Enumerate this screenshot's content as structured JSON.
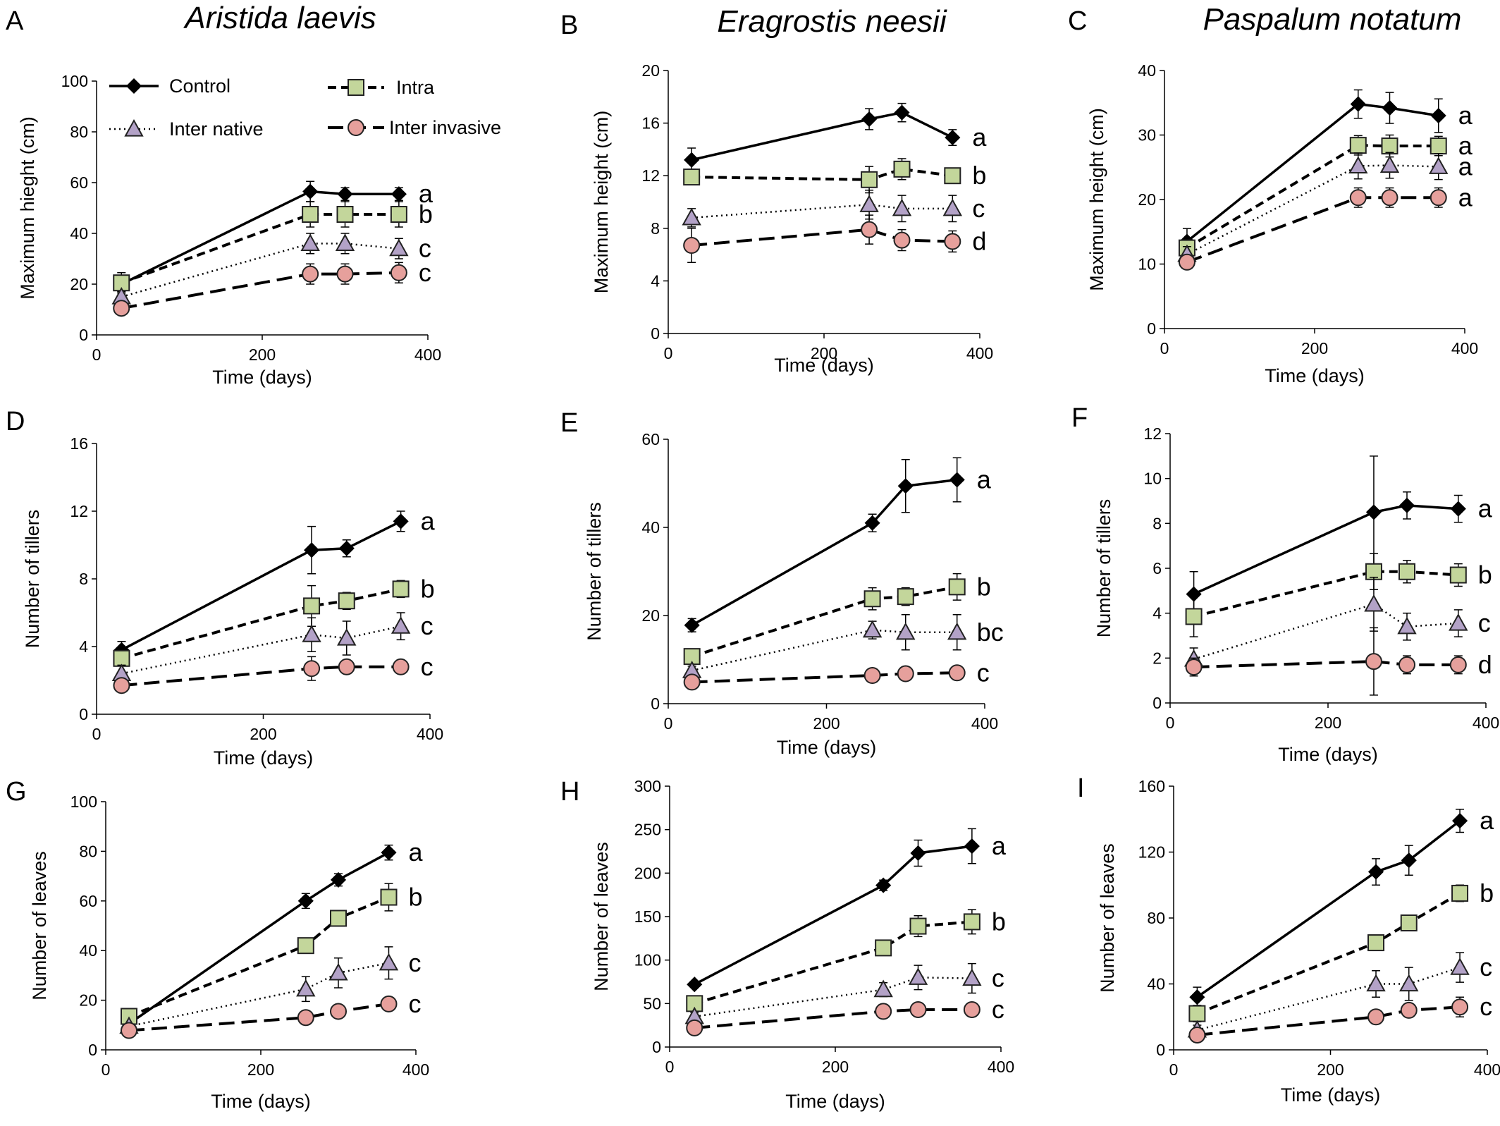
{
  "figure": {
    "species": [
      "Aristida laevis",
      "Eragrostis neesii",
      "Paspalum notatum"
    ],
    "legend": [
      {
        "name": "Control",
        "style": "control"
      },
      {
        "name": "Intra",
        "style": "intra"
      },
      {
        "name": "Inter native",
        "style": "native"
      },
      {
        "name": "Inter invasive",
        "style": "invasive"
      }
    ],
    "colors": {
      "control": "#000000",
      "intra": "#c3d69b",
      "native": "#b3a2c7",
      "invasive": "#e6a09c"
    }
  },
  "chart_data": [
    {
      "panel": "A",
      "type": "line",
      "xlabel": "Time (days)",
      "ylabel": "Maximum hieght (cm)",
      "xlim": [
        0,
        400
      ],
      "ylim": [
        0,
        100
      ],
      "xticks": [
        0,
        200,
        400
      ],
      "yticks": [
        0,
        20,
        40,
        60,
        80,
        100
      ],
      "x": [
        30,
        258,
        300,
        365
      ],
      "series": [
        {
          "name": "Control",
          "values": [
            20,
            56.5,
            55.5,
            55.5
          ],
          "err": [
            2,
            4,
            2.5,
            2.5
          ],
          "letter": "a"
        },
        {
          "name": "Intra",
          "values": [
            20.5,
            47.5,
            47.5,
            47.5
          ],
          "err": [
            4,
            5,
            5,
            5
          ],
          "letter": "b"
        },
        {
          "name": "Inter native",
          "values": [
            15,
            36,
            36,
            34
          ],
          "err": [
            2,
            4,
            4,
            4
          ],
          "letter": "c"
        },
        {
          "name": "Inter invasive",
          "values": [
            10.5,
            24,
            24,
            24.5
          ],
          "err": [
            1,
            4,
            4,
            4
          ],
          "letter": "c"
        }
      ]
    },
    {
      "panel": "B",
      "type": "line",
      "xlabel": "Time (days)",
      "ylabel": "Maximum height (cm)",
      "xlim": [
        0,
        400
      ],
      "ylim": [
        0,
        20
      ],
      "xticks": [
        0,
        200,
        400
      ],
      "yticks": [
        0,
        4,
        8,
        12,
        16,
        20
      ],
      "x": [
        30,
        258,
        300,
        365
      ],
      "series": [
        {
          "name": "Control",
          "values": [
            13.2,
            16.3,
            16.8,
            14.9
          ],
          "err": [
            0.9,
            0.8,
            0.7,
            0.6
          ],
          "letter": "a"
        },
        {
          "name": "Intra",
          "values": [
            11.9,
            11.7,
            12.5,
            12
          ],
          "err": [
            0.6,
            1,
            0.8,
            0.5
          ],
          "letter": "b"
        },
        {
          "name": "Inter native",
          "values": [
            8.8,
            9.8,
            9.5,
            9.5
          ],
          "err": [
            0.7,
            1.1,
            1,
            1
          ],
          "letter": "c"
        },
        {
          "name": "Inter invasive",
          "values": [
            6.7,
            7.9,
            7.1,
            7
          ],
          "err": [
            1.3,
            1.1,
            0.8,
            0.8
          ],
          "letter": "d"
        }
      ]
    },
    {
      "panel": "C",
      "type": "line",
      "xlabel": "Time (days)",
      "ylabel": "Maximum height (cm)",
      "xlim": [
        0,
        400
      ],
      "ylim": [
        0,
        40
      ],
      "xticks": [
        0,
        200,
        400
      ],
      "yticks": [
        0,
        10,
        20,
        30,
        40
      ],
      "x": [
        30,
        258,
        300,
        365
      ],
      "series": [
        {
          "name": "Control",
          "values": [
            13.5,
            34.8,
            34.2,
            33
          ],
          "err": [
            2,
            2.2,
            2.4,
            2.6
          ],
          "letter": "a"
        },
        {
          "name": "Intra",
          "values": [
            12.5,
            28.4,
            28.3,
            28.3
          ],
          "err": [
            1.5,
            1.5,
            1.7,
            1.5
          ],
          "letter": "a"
        },
        {
          "name": "Inter native",
          "values": [
            11.5,
            25.2,
            25.3,
            25.1
          ],
          "err": [
            1.2,
            2,
            2,
            2
          ],
          "letter": "a"
        },
        {
          "name": "Inter invasive",
          "values": [
            10.3,
            20.3,
            20.3,
            20.3
          ],
          "err": [
            0.8,
            1.5,
            1.5,
            1.5
          ],
          "letter": "a"
        }
      ]
    },
    {
      "panel": "D",
      "type": "line",
      "xlabel": "Time (days)",
      "ylabel": "Number of tillers",
      "xlim": [
        0,
        400
      ],
      "ylim": [
        0,
        16
      ],
      "xticks": [
        0,
        200,
        400
      ],
      "yticks": [
        0,
        4,
        8,
        12,
        16
      ],
      "x": [
        30,
        258,
        300,
        365
      ],
      "series": [
        {
          "name": "Control",
          "values": [
            3.8,
            9.7,
            9.8,
            11.4
          ],
          "err": [
            0.5,
            1.4,
            0.5,
            0.6
          ],
          "letter": "a"
        },
        {
          "name": "Intra",
          "values": [
            3.3,
            6.4,
            6.7,
            7.4
          ],
          "err": [
            0.4,
            1.2,
            0.5,
            0.5
          ],
          "letter": "b"
        },
        {
          "name": "Inter native",
          "values": [
            2.4,
            4.7,
            4.5,
            5.2
          ],
          "err": [
            0.5,
            1,
            1,
            0.8
          ],
          "letter": "c"
        },
        {
          "name": "Inter invasive",
          "values": [
            1.7,
            2.7,
            2.8,
            2.8
          ],
          "err": [
            0.2,
            0.7,
            0.3,
            0.2
          ],
          "letter": "c"
        }
      ]
    },
    {
      "panel": "E",
      "type": "line",
      "xlabel": "Time (days)",
      "ylabel": "Number of tillers",
      "xlim": [
        0,
        400
      ],
      "ylim": [
        0,
        60
      ],
      "xticks": [
        0,
        200,
        400
      ],
      "yticks": [
        0,
        20,
        40,
        60
      ],
      "x": [
        30,
        258,
        300,
        365
      ],
      "series": [
        {
          "name": "Control",
          "values": [
            17.8,
            41,
            49.4,
            50.8
          ],
          "err": [
            1.5,
            2,
            6,
            5
          ],
          "letter": "a"
        },
        {
          "name": "Intra",
          "values": [
            10.7,
            23.8,
            24.3,
            26.5
          ],
          "err": [
            1.2,
            2.5,
            2,
            3
          ],
          "letter": "b"
        },
        {
          "name": "Inter native",
          "values": [
            7.5,
            16.7,
            16.2,
            16.2
          ],
          "err": [
            1,
            2,
            4,
            4
          ],
          "letter": "bc"
        },
        {
          "name": "Inter invasive",
          "values": [
            4.9,
            6.4,
            6.8,
            7
          ],
          "err": [
            0.8,
            0.6,
            0.8,
            0.8
          ],
          "letter": "c"
        }
      ]
    },
    {
      "panel": "F",
      "type": "line",
      "xlabel": "Time (days)",
      "ylabel": "Number of tillers",
      "xlim": [
        0,
        400
      ],
      "ylim": [
        0,
        12
      ],
      "xticks": [
        0,
        200,
        400
      ],
      "yticks": [
        0,
        2,
        4,
        6,
        8,
        10,
        12
      ],
      "x": [
        30,
        258,
        300,
        365
      ],
      "series": [
        {
          "name": "Control",
          "values": [
            4.85,
            8.5,
            8.8,
            8.65
          ],
          "err": [
            1,
            2.5,
            0.6,
            0.6
          ],
          "letter": "a"
        },
        {
          "name": "Intra",
          "values": [
            3.85,
            5.85,
            5.85,
            5.7
          ],
          "err": [
            0.9,
            0.8,
            0.5,
            0.5
          ],
          "letter": "b"
        },
        {
          "name": "Inter native",
          "values": [
            1.95,
            4.4,
            3.4,
            3.55
          ],
          "err": [
            0.5,
            1.2,
            0.6,
            0.6
          ],
          "letter": "c"
        },
        {
          "name": "Inter invasive",
          "values": [
            1.6,
            1.85,
            1.7,
            1.7
          ],
          "err": [
            0.4,
            1.5,
            0.4,
            0.4
          ],
          "letter": "d"
        }
      ]
    },
    {
      "panel": "G",
      "type": "line",
      "xlabel": "Time (days)",
      "ylabel": "Number of leaves",
      "xlim": [
        0,
        400
      ],
      "ylim": [
        0,
        100
      ],
      "xticks": [
        0,
        200,
        400
      ],
      "yticks": [
        0,
        20,
        40,
        60,
        80,
        100
      ],
      "x": [
        30,
        258,
        300,
        365
      ],
      "series": [
        {
          "name": "Control",
          "values": [
            10.5,
            60,
            68.5,
            79.5
          ],
          "err": [
            1,
            3,
            2.5,
            3
          ],
          "letter": "a"
        },
        {
          "name": "Intra",
          "values": [
            13.5,
            42,
            53,
            61.5
          ],
          "err": [
            1,
            2,
            3,
            5.5
          ],
          "letter": "b"
        },
        {
          "name": "Inter native",
          "values": [
            9.5,
            24.5,
            31,
            35
          ],
          "err": [
            1,
            5,
            6,
            6.5
          ],
          "letter": "c"
        },
        {
          "name": "Inter invasive",
          "values": [
            7.8,
            13,
            15.5,
            18.5
          ],
          "err": [
            1,
            1,
            1,
            1
          ],
          "letter": "c"
        }
      ]
    },
    {
      "panel": "H",
      "type": "line",
      "xlabel": "Time (days)",
      "ylabel": "Number of leaves",
      "xlim": [
        0,
        400
      ],
      "ylim": [
        0,
        300
      ],
      "xticks": [
        0,
        200,
        400
      ],
      "yticks": [
        0,
        50,
        100,
        150,
        200,
        250,
        300
      ],
      "x": [
        30,
        258,
        300,
        365
      ],
      "series": [
        {
          "name": "Control",
          "values": [
            72,
            186,
            223,
            231
          ],
          "err": [
            3,
            6,
            15,
            20
          ],
          "letter": "a"
        },
        {
          "name": "Intra",
          "values": [
            50,
            114,
            139,
            144
          ],
          "err": [
            6,
            8,
            12,
            14
          ],
          "letter": "b"
        },
        {
          "name": "Inter native",
          "values": [
            35,
            66,
            80,
            79
          ],
          "err": [
            5,
            8,
            14,
            17
          ],
          "letter": "c"
        },
        {
          "name": "Inter invasive",
          "values": [
            22,
            41,
            43,
            43
          ],
          "err": [
            3,
            3,
            3,
            3
          ],
          "letter": "c"
        }
      ]
    },
    {
      "panel": "I",
      "type": "line",
      "xlabel": "Time (days)",
      "ylabel": "Number of leaves",
      "xlim": [
        0,
        400
      ],
      "ylim": [
        0,
        160
      ],
      "xticks": [
        0,
        200,
        400
      ],
      "yticks": [
        0,
        40,
        80,
        120,
        160
      ],
      "x": [
        30,
        258,
        300,
        365
      ],
      "series": [
        {
          "name": "Control",
          "values": [
            32,
            108,
            115,
            139
          ],
          "err": [
            6,
            8,
            9,
            7
          ],
          "letter": "a"
        },
        {
          "name": "Intra",
          "values": [
            22,
            65,
            77,
            95
          ],
          "err": [
            5,
            3,
            4,
            5
          ],
          "letter": "b"
        },
        {
          "name": "Inter native",
          "values": [
            12,
            40,
            40,
            50
          ],
          "err": [
            3,
            8,
            10,
            9
          ],
          "letter": "c"
        },
        {
          "name": "Inter invasive",
          "values": [
            9,
            20,
            24,
            26
          ],
          "err": [
            2,
            2,
            4,
            6
          ],
          "letter": "c"
        }
      ]
    }
  ]
}
